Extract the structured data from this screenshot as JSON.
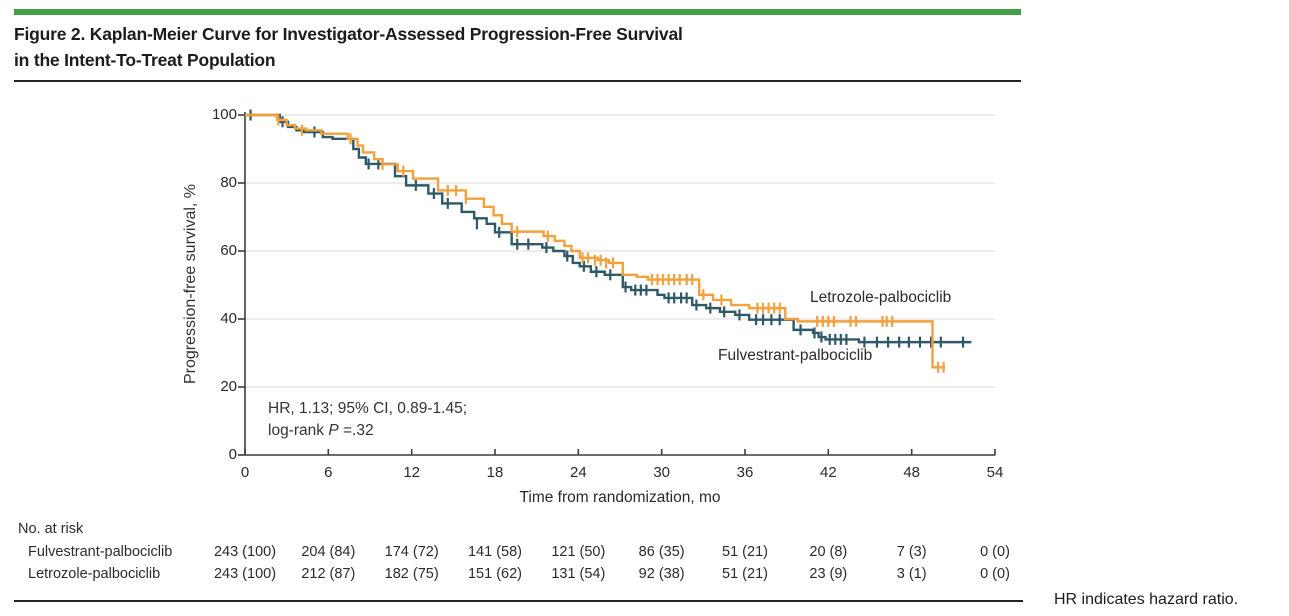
{
  "figure": {
    "title_line1": "Figure 2. Kaplan-Meier Curve for Investigator-Assessed Progression-Free Survival",
    "title_line2": "in the Intent-To-Treat Population",
    "footnote": "HR indicates hazard ratio.",
    "accent_color": "#44A047"
  },
  "annotation": {
    "line1": "HR, 1.13; 95% CI, 0.89-1.45;",
    "line2_prefix": "log-rank ",
    "line2_italic": "P",
    "line2_suffix": " =.32"
  },
  "chart_data": {
    "type": "line",
    "subtype": "kaplan-meier-step",
    "title": "",
    "xlabel": "Time from randomization, mo",
    "ylabel": "Progression-free survival, %",
    "xlim": [
      0,
      54
    ],
    "ylim": [
      0,
      100
    ],
    "x_ticks": [
      0,
      6,
      12,
      18,
      24,
      30,
      36,
      42,
      48,
      54
    ],
    "y_ticks": [
      0,
      20,
      40,
      60,
      80,
      100
    ],
    "grid": "horizontal",
    "gridline_color": "#d9d9d9",
    "axis_color": "#3d3d3d",
    "legend_position": "inline-labels",
    "stats_annotation": "HR, 1.13; 95% CI, 0.89-1.45; log-rank P =.32",
    "series": [
      {
        "name": "Letrozole-palbociclib",
        "color": "#F1A13D",
        "steps": [
          [
            0,
            100
          ],
          [
            2.3,
            98.5
          ],
          [
            3.0,
            97
          ],
          [
            3.6,
            96
          ],
          [
            4.4,
            95.5
          ],
          [
            5.5,
            94.5
          ],
          [
            7.4,
            93
          ],
          [
            8.1,
            91
          ],
          [
            8.5,
            89
          ],
          [
            9.3,
            87
          ],
          [
            9.9,
            85.5
          ],
          [
            11.0,
            83.5
          ],
          [
            12.1,
            81.3
          ],
          [
            13.9,
            77.8
          ],
          [
            15.9,
            75.4
          ],
          [
            17.2,
            73
          ],
          [
            17.9,
            70.5
          ],
          [
            18.5,
            68
          ],
          [
            19.2,
            65.7
          ],
          [
            21.5,
            64.4
          ],
          [
            22.3,
            63
          ],
          [
            23.0,
            61.5
          ],
          [
            23.5,
            60
          ],
          [
            24.1,
            58
          ],
          [
            25.4,
            57.3
          ],
          [
            26.2,
            56.5
          ],
          [
            27.2,
            53
          ],
          [
            28.2,
            52.4
          ],
          [
            29.0,
            51.6
          ],
          [
            32.7,
            47.1
          ],
          [
            33.7,
            45.6
          ],
          [
            35.0,
            44.1
          ],
          [
            36.3,
            43.2
          ],
          [
            38.9,
            40.0
          ],
          [
            39.8,
            39.3
          ],
          [
            49.5,
            25.8
          ]
        ],
        "end_time": 50.4,
        "censors": [
          [
            2.4,
            98.5
          ],
          [
            4.1,
            95.5
          ],
          [
            7.6,
            93
          ],
          [
            9.9,
            85.5
          ],
          [
            11.4,
            83.5
          ],
          [
            14.6,
            77.8
          ],
          [
            15.2,
            77.8
          ],
          [
            15.9,
            75.4
          ],
          [
            19.6,
            65.7
          ],
          [
            21.8,
            64.4
          ],
          [
            24.3,
            58
          ],
          [
            24.7,
            58
          ],
          [
            25.2,
            57.3
          ],
          [
            25.6,
            57.3
          ],
          [
            26.0,
            56.5
          ],
          [
            26.5,
            56.5
          ],
          [
            29.3,
            51.6
          ],
          [
            29.7,
            51.6
          ],
          [
            30.1,
            51.6
          ],
          [
            30.5,
            51.6
          ],
          [
            30.9,
            51.6
          ],
          [
            31.3,
            51.6
          ],
          [
            31.8,
            51.6
          ],
          [
            32.2,
            51.6
          ],
          [
            33.0,
            47.1
          ],
          [
            34.3,
            45.6
          ],
          [
            36.9,
            43.2
          ],
          [
            37.3,
            43.2
          ],
          [
            37.7,
            43.2
          ],
          [
            38.1,
            43.2
          ],
          [
            38.5,
            43.2
          ],
          [
            41.2,
            39.3
          ],
          [
            41.6,
            39.3
          ],
          [
            42.0,
            39.3
          ],
          [
            42.4,
            39.3
          ],
          [
            43.6,
            39.3
          ],
          [
            44.0,
            39.3
          ],
          [
            45.9,
            39.3
          ],
          [
            46.2,
            39.3
          ],
          [
            46.6,
            39.3
          ],
          [
            49.9,
            25.8
          ],
          [
            50.3,
            25.8
          ]
        ]
      },
      {
        "name": "Fulvestrant-palbociclib",
        "color": "#2F5966",
        "steps": [
          [
            0,
            100
          ],
          [
            2.5,
            98
          ],
          [
            3.1,
            96.5
          ],
          [
            3.7,
            95.5
          ],
          [
            4.2,
            95
          ],
          [
            5.6,
            93.5
          ],
          [
            6.3,
            93
          ],
          [
            7.8,
            90
          ],
          [
            8.2,
            87.5
          ],
          [
            8.7,
            85.6
          ],
          [
            10.8,
            82
          ],
          [
            11.6,
            79.3
          ],
          [
            13.2,
            76.9
          ],
          [
            14.2,
            74
          ],
          [
            15.6,
            71.5
          ],
          [
            16.5,
            69.6
          ],
          [
            17.4,
            68
          ],
          [
            18.0,
            65.5
          ],
          [
            19.2,
            62
          ],
          [
            21.4,
            61
          ],
          [
            22.2,
            60
          ],
          [
            23.0,
            58.5
          ],
          [
            23.6,
            56.5
          ],
          [
            24.1,
            55.5
          ],
          [
            24.9,
            53.9
          ],
          [
            25.9,
            53
          ],
          [
            27.2,
            49.4
          ],
          [
            27.8,
            48.5
          ],
          [
            29.7,
            47.1
          ],
          [
            30.2,
            46.2
          ],
          [
            32.2,
            44.1
          ],
          [
            33.2,
            43.2
          ],
          [
            34.2,
            42.1
          ],
          [
            35.3,
            41.2
          ],
          [
            36.3,
            39.8
          ],
          [
            39.5,
            36.8
          ],
          [
            40.9,
            35.9
          ],
          [
            41.3,
            34.7
          ],
          [
            41.8,
            34.0
          ],
          [
            44.2,
            33.2
          ]
        ],
        "end_time": 52.3,
        "censors": [
          [
            0.4,
            100
          ],
          [
            2.7,
            98
          ],
          [
            5.0,
            95
          ],
          [
            8.9,
            85.6
          ],
          [
            9.6,
            85.6
          ],
          [
            12.3,
            79.3
          ],
          [
            13.6,
            76.9
          ],
          [
            14.6,
            74
          ],
          [
            16.7,
            68
          ],
          [
            18.3,
            65.5
          ],
          [
            19.6,
            62
          ],
          [
            20.4,
            62
          ],
          [
            21.7,
            61
          ],
          [
            23.2,
            58.5
          ],
          [
            24.4,
            55.5
          ],
          [
            25.3,
            53.9
          ],
          [
            26.3,
            53
          ],
          [
            27.4,
            49.4
          ],
          [
            28.1,
            48.5
          ],
          [
            28.5,
            48.5
          ],
          [
            28.9,
            48.5
          ],
          [
            30.5,
            46.2
          ],
          [
            30.9,
            46.2
          ],
          [
            31.4,
            46.2
          ],
          [
            31.8,
            46.2
          ],
          [
            32.5,
            44.1
          ],
          [
            33.5,
            43.2
          ],
          [
            34.5,
            42.1
          ],
          [
            35.6,
            41.2
          ],
          [
            36.8,
            39.8
          ],
          [
            37.3,
            39.8
          ],
          [
            37.9,
            39.8
          ],
          [
            38.5,
            39.8
          ],
          [
            40.0,
            36.8
          ],
          [
            41.0,
            35.9
          ],
          [
            41.5,
            34.7
          ],
          [
            42.1,
            34.0
          ],
          [
            42.5,
            34.0
          ],
          [
            42.9,
            34.0
          ],
          [
            43.3,
            34.0
          ],
          [
            44.6,
            33.2
          ],
          [
            45.5,
            33.2
          ],
          [
            46.3,
            33.2
          ],
          [
            47.1,
            33.2
          ],
          [
            47.8,
            33.2
          ],
          [
            48.6,
            33.2
          ],
          [
            49.4,
            33.2
          ],
          [
            50.1,
            33.2
          ],
          [
            51.7,
            33.2
          ]
        ]
      }
    ]
  },
  "risk_table": {
    "heading": "No. at risk",
    "time_points": [
      0,
      6,
      12,
      18,
      24,
      30,
      36,
      42,
      48,
      54
    ],
    "rows": [
      {
        "label": "Fulvestrant-palbociclib",
        "values": [
          "243 (100)",
          "204 (84)",
          "174 (72)",
          "141 (58)",
          "121 (50)",
          "86 (35)",
          "51 (21)",
          "20 (8)",
          "7 (3)",
          "0 (0)"
        ]
      },
      {
        "label": "Letrozole-palbociclib",
        "values": [
          "243 (100)",
          "212 (87)",
          "182 (75)",
          "151 (62)",
          "131 (54)",
          "92 (38)",
          "51 (21)",
          "23 (9)",
          "3 (1)",
          "0 (0)"
        ]
      }
    ]
  }
}
